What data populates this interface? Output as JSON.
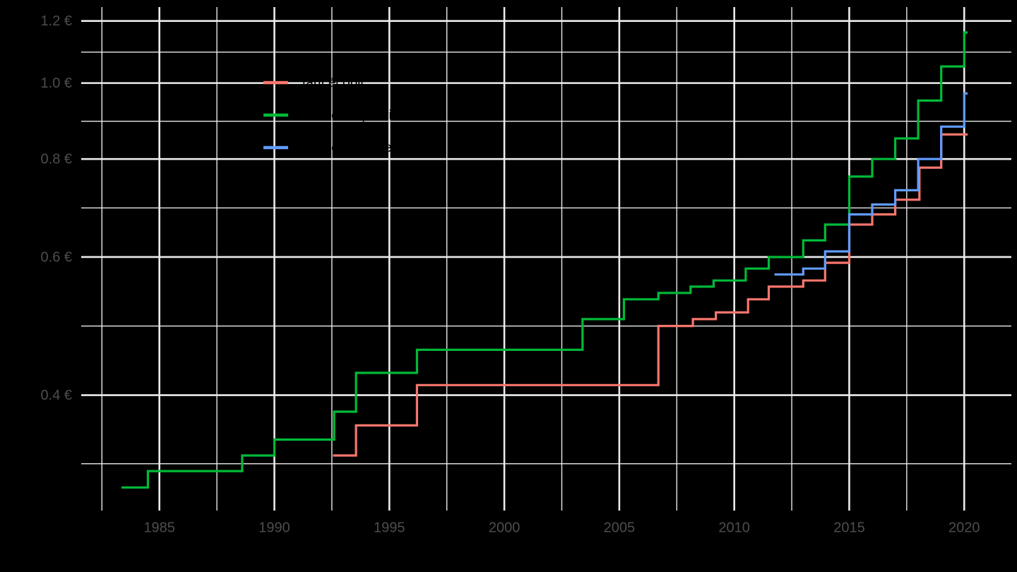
{
  "chart_data": {
    "type": "line",
    "subtype": "step",
    "title": "",
    "background": "#000000",
    "grid": {
      "major_color": "#EBEBEB",
      "minor_color": "#EBEBEB",
      "major_width": 2.6,
      "minor_width": 1.4
    },
    "axis_text_color": "#4D4D4D",
    "x_axis": {
      "range": [
        1981.6,
        2022.05
      ],
      "scale": "linear",
      "major_ticks": [
        1985,
        1990,
        1995,
        2000,
        2005,
        2010,
        2015,
        2020
      ],
      "tick_labels": [
        "1985",
        "1990",
        "1995",
        "2000",
        "2005",
        "2010",
        "2015",
        "2020"
      ],
      "minor_ticks": [
        1982.5,
        1987.5,
        1992.5,
        1997.5,
        2002.5,
        2007.5,
        2012.5,
        2017.5
      ]
    },
    "y_axis": {
      "range": [
        0.285,
        1.25
      ],
      "scale": "log10",
      "major_ticks": [
        0.4,
        0.6,
        0.8,
        1.0,
        1.2
      ],
      "tick_labels": [
        "0.4 €",
        "0.6 €",
        "0.8 €",
        "1.0 €",
        "1.2 €"
      ],
      "minor_ticks": [
        0.327,
        0.49,
        0.693,
        0.894,
        1.095
      ]
    },
    "legend": {
      "position": "inside-top-left",
      "text_color": "#000000",
      "entries": [
        {
          "label": "tarif écopli",
          "color": "#F8766D"
        },
        {
          "label": "tarif lettre prioritaire",
          "color": "#00BA38"
        },
        {
          "label": "tarif lettre verte",
          "color": "#619CFF"
        }
      ]
    },
    "series": [
      {
        "name": "tarif écopli",
        "slug": "tarif-ecopli",
        "color": "#F8766D",
        "points": [
          [
            1992.55,
            0.335
          ],
          [
            1993.55,
            0.366
          ],
          [
            1996.2,
            0.412
          ],
          [
            2006.7,
            0.49
          ],
          [
            2008.2,
            0.5
          ],
          [
            2009.2,
            0.51
          ],
          [
            2010.6,
            0.53
          ],
          [
            2011.5,
            0.55
          ],
          [
            2013.0,
            0.56
          ],
          [
            2013.95,
            0.59
          ],
          [
            2015.0,
            0.66
          ],
          [
            2016.0,
            0.68
          ],
          [
            2017.0,
            0.71
          ],
          [
            2018.05,
            0.78
          ],
          [
            2019.0,
            0.86
          ],
          [
            2020.15,
            0.86
          ]
        ]
      },
      {
        "name": "tarif lettre prioritaire",
        "slug": "tarif-lettre-prioritaire",
        "color": "#00BA38",
        "points": [
          [
            1983.35,
            0.305
          ],
          [
            1984.5,
            0.32
          ],
          [
            1988.6,
            0.335
          ],
          [
            1990.0,
            0.351
          ],
          [
            1992.6,
            0.381
          ],
          [
            1993.55,
            0.427
          ],
          [
            1996.2,
            0.457
          ],
          [
            2003.4,
            0.5
          ],
          [
            2005.2,
            0.53
          ],
          [
            2006.7,
            0.54
          ],
          [
            2008.1,
            0.55
          ],
          [
            2009.1,
            0.56
          ],
          [
            2010.5,
            0.58
          ],
          [
            2011.5,
            0.6
          ],
          [
            2013.0,
            0.63
          ],
          [
            2013.95,
            0.66
          ],
          [
            2015.0,
            0.76
          ],
          [
            2016.0,
            0.8
          ],
          [
            2017.0,
            0.85
          ],
          [
            2018.0,
            0.95
          ],
          [
            2019.0,
            1.05
          ],
          [
            2020.0,
            1.16
          ],
          [
            2020.15,
            1.16
          ]
        ]
      },
      {
        "name": "tarif lettre verte",
        "slug": "tarif-lettre-verte",
        "color": "#619CFF",
        "points": [
          [
            2011.75,
            0.57
          ],
          [
            2013.0,
            0.58
          ],
          [
            2013.95,
            0.61
          ],
          [
            2015.0,
            0.68
          ],
          [
            2016.0,
            0.7
          ],
          [
            2017.0,
            0.73
          ],
          [
            2018.0,
            0.8
          ],
          [
            2019.0,
            0.88
          ],
          [
            2020.0,
            0.97
          ],
          [
            2020.15,
            0.97
          ]
        ]
      }
    ]
  }
}
